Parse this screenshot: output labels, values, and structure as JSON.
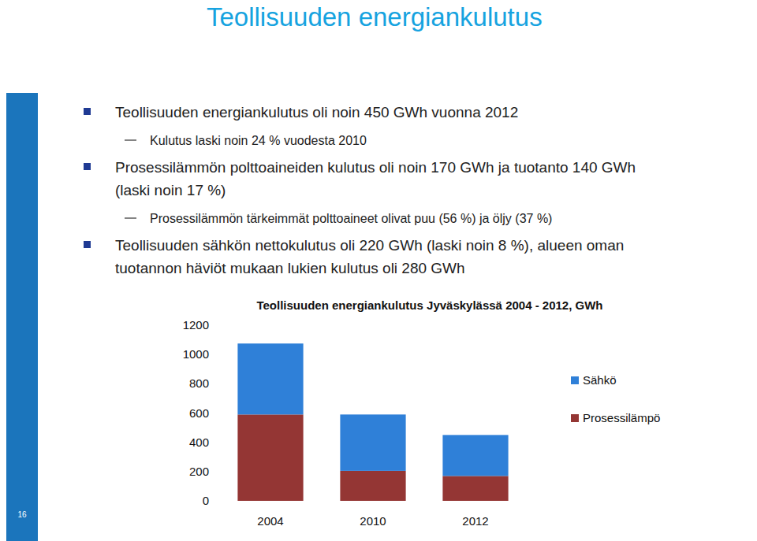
{
  "slide": {
    "title": "Teollisuuden energiankulutus",
    "page_number": "16",
    "bullets": [
      {
        "lines": [
          "Teollisuuden energiankulutus oli noin 450 GWh vuonna 2012"
        ],
        "sub": [
          "Kulutus laski noin 24 % vuodesta 2010"
        ]
      },
      {
        "lines": [
          "Prosessilämmön polttoaineiden kulutus oli noin 170 GWh ja tuotanto 140 GWh",
          "(laski noin 17 %)"
        ],
        "sub": [
          "Prosessilämmön tärkeimmät polttoaineet olivat puu (56 %) ja öljy (37 %)"
        ]
      },
      {
        "lines": [
          "Teollisuuden sähkön nettokulutus oli 220 GWh (laski noin 8 %), alueen oman",
          "tuotannon häviöt mukaan lukien kulutus oli 280 GWh"
        ],
        "sub": []
      }
    ]
  },
  "chart_data": {
    "type": "bar",
    "stacked": true,
    "title": "Teollisuuden energiankulutus Jyväskylässä 2004 - 2012, GWh",
    "categories": [
      "2004",
      "2010",
      "2012"
    ],
    "series": [
      {
        "name": "Sähkö",
        "color": "#2f80d8",
        "values": [
          485,
          385,
          280
        ]
      },
      {
        "name": "Prosessilämpö",
        "color": "#943634",
        "values": [
          590,
          205,
          170
        ]
      }
    ],
    "ylim": [
      0,
      1200
    ],
    "yticks": [
      0,
      200,
      400,
      600,
      800,
      1000,
      1200
    ],
    "grid": false,
    "legend": "right"
  }
}
